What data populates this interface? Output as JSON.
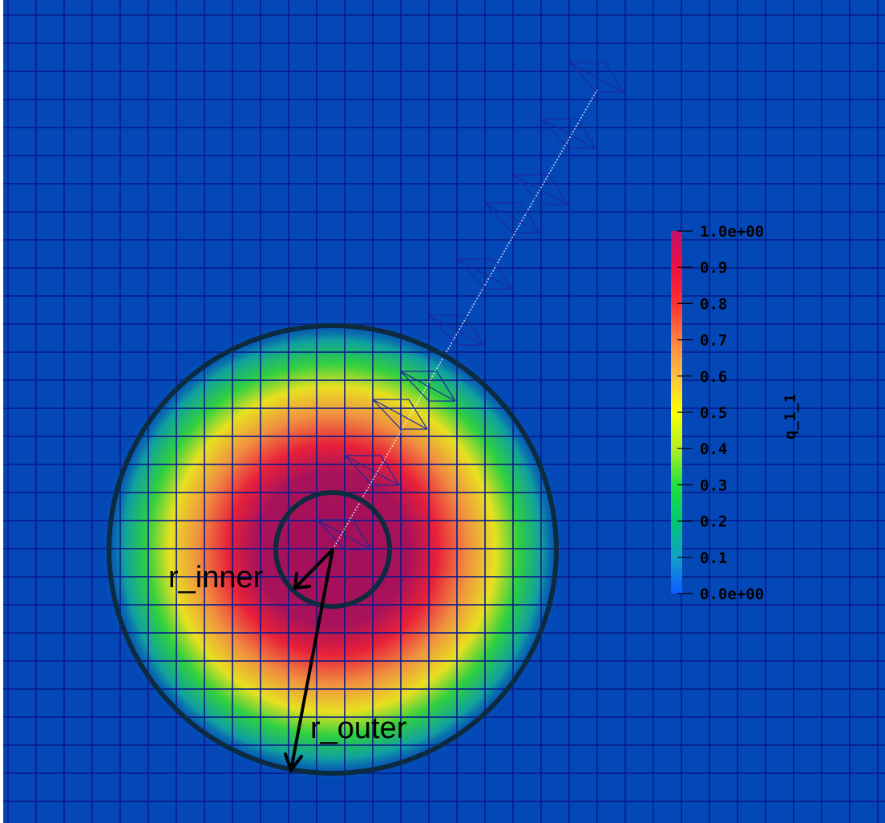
{
  "colorbar": {
    "title": "q_1_1",
    "ticks": [
      "1.0e+00",
      "0.9",
      "0.8",
      "0.7",
      "0.6",
      "0.5",
      "0.4",
      "0.3",
      "0.2",
      "0.1",
      "0.0e+00"
    ],
    "range": [
      0,
      1
    ],
    "colormap": [
      "#0a5cff",
      "#11a0c8",
      "#00c870",
      "#20e040",
      "#b0f020",
      "#ffff00",
      "#ffc040",
      "#ff8040",
      "#ff3030",
      "#ee1040",
      "#c0106a"
    ]
  },
  "annotations": {
    "inner_label": "r_inner",
    "outer_label": "r_outer"
  },
  "colors": {
    "background": "#0448b8",
    "grid": "#0a1a8a",
    "circle": "#0c2a40"
  }
}
